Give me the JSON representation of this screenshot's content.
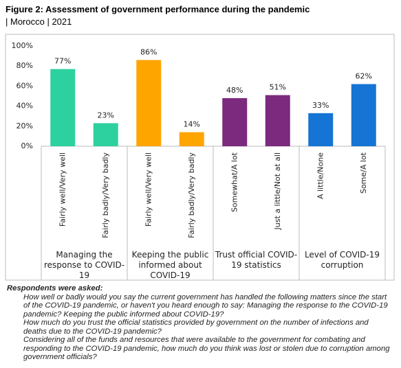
{
  "title": "Figure 2: Assessment of government performance during the pandemic",
  "subtitle": "| Morocco | 2021",
  "chart_data": {
    "type": "bar",
    "ylim": [
      0,
      100
    ],
    "yticks": [
      {
        "value": 0,
        "label": "0%"
      },
      {
        "value": 20,
        "label": "20%"
      },
      {
        "value": 40,
        "label": "40%"
      },
      {
        "value": 60,
        "label": "60%"
      },
      {
        "value": 80,
        "label": "80%"
      },
      {
        "value": 100,
        "label": "100%"
      }
    ],
    "groups": [
      {
        "name": "Managing the response to COVID-19",
        "color": "#2dd19f",
        "categories": [
          "Fairly well/Very well",
          "Fairly badly/Very badly"
        ],
        "values": [
          77,
          23
        ],
        "value_labels": [
          "77%",
          "23%"
        ]
      },
      {
        "name": "Keeping the public informed about COVID-19",
        "color": "#ffa500",
        "categories": [
          "Fairly well/Very well",
          "Fairly badly/Very badly"
        ],
        "values": [
          86,
          14
        ],
        "value_labels": [
          "86%",
          "14%"
        ]
      },
      {
        "name": "Trust official COVID-19 statistics",
        "color": "#7b2a7e",
        "categories": [
          "Somewhat/A lot",
          "Just a little/Not at all"
        ],
        "values": [
          48,
          51
        ],
        "value_labels": [
          "48%",
          "51%"
        ]
      },
      {
        "name": "Level of COVID-19 corruption",
        "color": "#1574d4",
        "categories": [
          "A little/None",
          "Some/A lot"
        ],
        "values": [
          33,
          62
        ],
        "value_labels": [
          "33%",
          "62%"
        ]
      }
    ]
  },
  "notes": {
    "heading": "Respondents were asked:",
    "questions": [
      "How well or badly would you say the current government has handled the following matters since the start of the COVID-19 pandemic, or haven't you heard enough to say: Managing the response to the COVID-19 pandemic? Keeping the public informed about COVID-19?",
      "How much do you trust the official statistics provided by government on the number of infections and deaths due to the COVID-19 pandemic?",
      "Considering all of the funds and resources that were available to the government for combating and responding to the COVID-19 pandemic, how much do you think was lost or stolen due to corruption among government officials?"
    ]
  }
}
